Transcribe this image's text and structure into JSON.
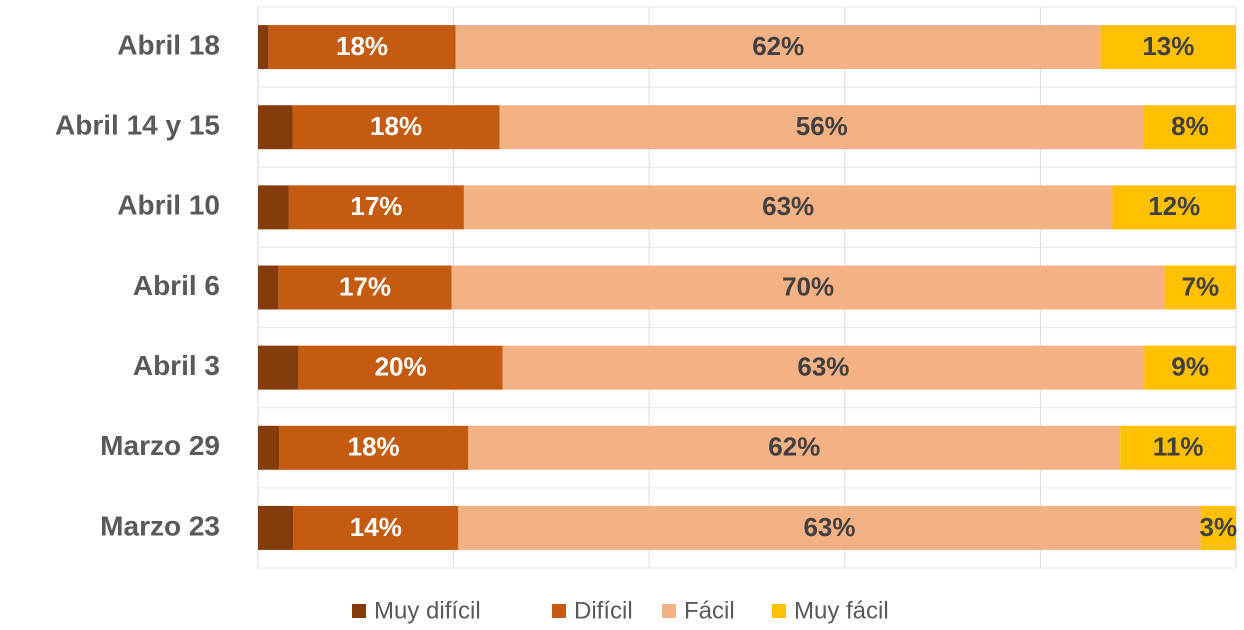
{
  "chart_data": {
    "type": "stacked_percent_barh",
    "categories": [
      "Abril 18",
      "Abril 14 y 15",
      "Abril 10",
      "Abril 6",
      "Abril 3",
      "Marzo 29",
      "Marzo 23"
    ],
    "series": [
      {
        "name": "Muy difícil",
        "color": "#843c0c",
        "values": [
          1,
          3,
          3,
          2,
          4,
          2,
          3
        ]
      },
      {
        "name": "Difícil",
        "color": "#c55a11",
        "values": [
          18,
          18,
          17,
          17,
          20,
          18,
          14
        ],
        "value_labels": [
          "18%",
          "18%",
          "17%",
          "17%",
          "20%",
          "18%",
          "14%"
        ]
      },
      {
        "name": "Fácil",
        "color": "#f4b183",
        "values": [
          62,
          56,
          63,
          70,
          63,
          62,
          63
        ],
        "value_labels": [
          "62%",
          "56%",
          "63%",
          "70%",
          "63%",
          "62%",
          "63%"
        ]
      },
      {
        "name": "Muy fácil",
        "color": "#ffc000",
        "values": [
          13,
          8,
          12,
          7,
          9,
          11,
          3
        ],
        "value_labels": [
          "13%",
          "8%",
          "12%",
          "7%",
          "9%",
          "11%",
          "3%"
        ]
      }
    ],
    "xlim": [
      0,
      100
    ],
    "xticks": [
      0,
      20,
      40,
      60,
      80,
      100
    ],
    "grid": true,
    "legend": "bottom"
  }
}
